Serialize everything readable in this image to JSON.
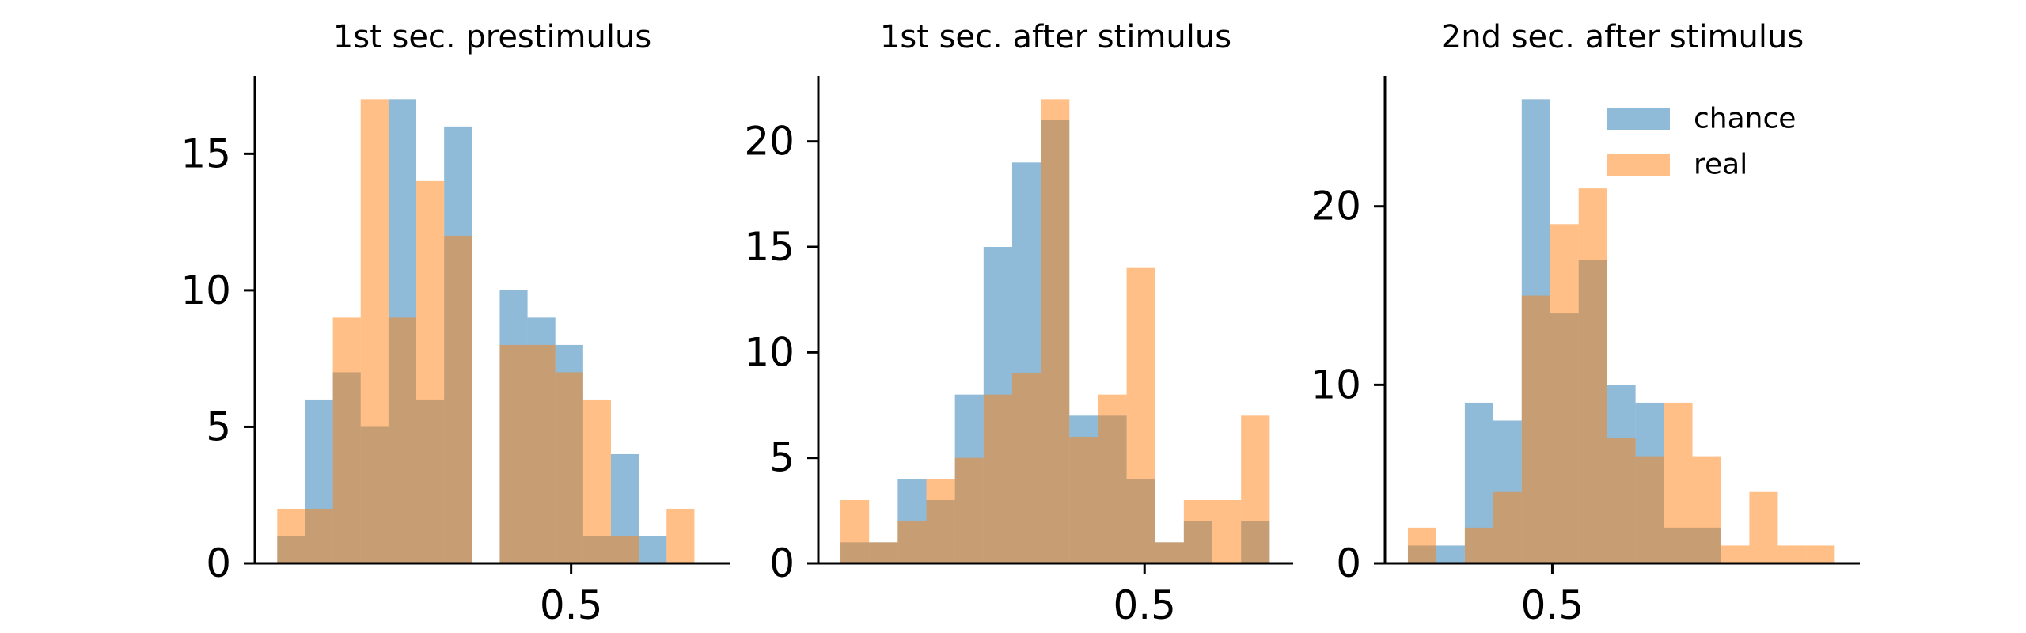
{
  "colors": {
    "chance": "#1f77b4",
    "real": "#ff7f0e",
    "opacity": 0.5
  },
  "chart_data": [
    {
      "type": "histogram",
      "title": "1st sec. prestimulus",
      "bin_width": 0.0335,
      "xlim": [
        0.119,
        0.691
      ],
      "ylim": [
        0,
        17.85
      ],
      "xticks": [
        0.5
      ],
      "xtick_labels": [
        "0.5"
      ],
      "yticks": [
        0,
        5,
        10,
        15
      ],
      "ytick_labels": [
        "0",
        "5",
        "10",
        "15"
      ],
      "grid": false,
      "series": [
        {
          "name": "chance",
          "bin_starts": [
            0.146,
            0.1795,
            0.213,
            0.2465,
            0.28,
            0.3135,
            0.347,
            0.3805,
            0.414,
            0.4475,
            0.481,
            0.5145,
            0.548,
            0.5815,
            0.615,
            0.6485
          ],
          "counts": [
            1,
            6,
            7,
            5,
            17,
            6,
            16,
            0,
            10,
            9,
            8,
            1,
            4,
            1,
            0,
            0
          ]
        },
        {
          "name": "real",
          "bin_starts": [
            0.146,
            0.1795,
            0.213,
            0.2465,
            0.28,
            0.3135,
            0.347,
            0.3805,
            0.414,
            0.4475,
            0.481,
            0.5145,
            0.548,
            0.5815,
            0.615,
            0.6485
          ],
          "counts": [
            2,
            2,
            9,
            17,
            9,
            14,
            12,
            0,
            8,
            8,
            7,
            6,
            1,
            0,
            2,
            0
          ]
        }
      ]
    },
    {
      "type": "histogram",
      "title": "1st sec. after stimulus",
      "bin_width": 0.0335,
      "xlim": [
        0.118,
        0.674
      ],
      "ylim": [
        0,
        23.1
      ],
      "xticks": [
        0.5
      ],
      "xtick_labels": [
        "0.5"
      ],
      "yticks": [
        0,
        5,
        10,
        15,
        20
      ],
      "ytick_labels": [
        "0",
        "5",
        "10",
        "15",
        "20"
      ],
      "grid": false,
      "series": [
        {
          "name": "chance",
          "bin_starts": [
            0.144,
            0.1775,
            0.211,
            0.2445,
            0.278,
            0.3115,
            0.345,
            0.3785,
            0.412,
            0.4455,
            0.479,
            0.5125,
            0.546,
            0.5795,
            0.613,
            0.6465
          ],
          "counts": [
            1,
            1,
            4,
            3,
            8,
            15,
            19,
            21,
            7,
            7,
            4,
            1,
            2,
            0,
            2,
            0
          ]
        },
        {
          "name": "real",
          "bin_starts": [
            0.144,
            0.1775,
            0.211,
            0.2445,
            0.278,
            0.3115,
            0.345,
            0.3785,
            0.412,
            0.4455,
            0.479,
            0.5125,
            0.546,
            0.5795,
            0.613,
            0.6465
          ],
          "counts": [
            3,
            1,
            2,
            4,
            5,
            8,
            9,
            22,
            6,
            8,
            14,
            1,
            3,
            3,
            7,
            0
          ]
        }
      ]
    },
    {
      "type": "histogram",
      "title": "2nd sec. after stimulus",
      "bin_width": 0.0335,
      "xlim": [
        0.303,
        0.862
      ],
      "ylim": [
        0,
        27.3
      ],
      "xticks": [
        0.5
      ],
      "xtick_labels": [
        "0.5"
      ],
      "yticks": [
        0,
        10,
        20
      ],
      "ytick_labels": [
        "0",
        "10",
        "20"
      ],
      "grid": false,
      "legend": {
        "placement": "top-right",
        "entries": [
          "chance",
          "real"
        ]
      },
      "series": [
        {
          "name": "chance",
          "bin_starts": [
            0.33,
            0.3635,
            0.397,
            0.4305,
            0.464,
            0.4975,
            0.531,
            0.5645,
            0.598,
            0.6315,
            0.665,
            0.6985,
            0.732,
            0.7655,
            0.799,
            0.8325
          ],
          "counts": [
            1,
            1,
            9,
            8,
            26,
            14,
            17,
            10,
            9,
            2,
            2,
            0,
            0,
            0,
            0,
            0
          ]
        },
        {
          "name": "real",
          "bin_starts": [
            0.33,
            0.3635,
            0.397,
            0.4305,
            0.464,
            0.4975,
            0.531,
            0.5645,
            0.598,
            0.6315,
            0.665,
            0.6985,
            0.732,
            0.7655,
            0.799,
            0.8325
          ],
          "counts": [
            2,
            0,
            2,
            4,
            15,
            19,
            21,
            7,
            6,
            9,
            6,
            1,
            4,
            1,
            1,
            0
          ]
        }
      ]
    }
  ]
}
